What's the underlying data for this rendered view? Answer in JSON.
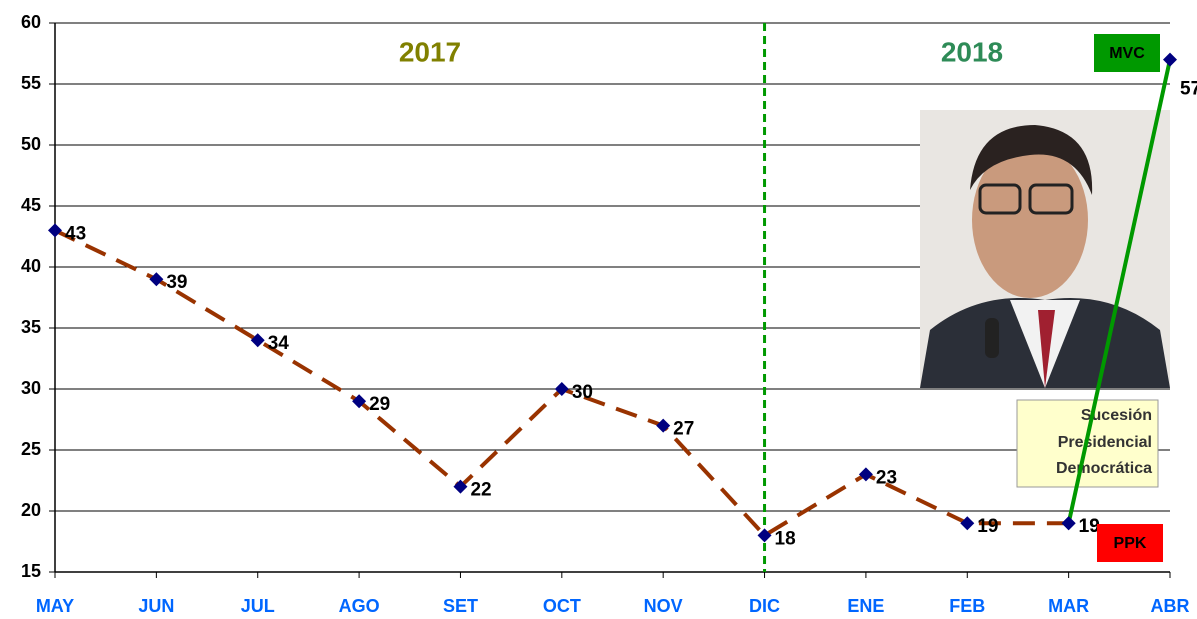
{
  "chart_data": {
    "type": "line",
    "categories": [
      "MAY",
      "JUN",
      "JUL",
      "AGO",
      "SET",
      "OCT",
      "NOV",
      "DIC",
      "ENE",
      "FEB",
      "MAR",
      "ABR"
    ],
    "series": [
      {
        "name": "PPK",
        "color": "#993300",
        "marker_color": "#000080",
        "dashed": true,
        "values": [
          43,
          39,
          34,
          29,
          22,
          30,
          27,
          18,
          23,
          19,
          19,
          null
        ]
      },
      {
        "name": "MVC",
        "color": "#009900",
        "marker_color": "#000080",
        "dashed": false,
        "values": [
          null,
          null,
          null,
          null,
          null,
          null,
          null,
          null,
          null,
          null,
          19,
          57
        ]
      }
    ],
    "legend_colors": {
      "MVC": "#009900",
      "PPK": "#ff0000"
    },
    "annotations": {
      "left_year": "2017",
      "right_year": "2018",
      "note": [
        "Sucesión",
        "Presidencial",
        "Democrática"
      ]
    },
    "ylim": [
      15,
      60
    ],
    "yticks": [
      15,
      20,
      25,
      30,
      35,
      40,
      45,
      50,
      55,
      60
    ],
    "grid": true
  }
}
